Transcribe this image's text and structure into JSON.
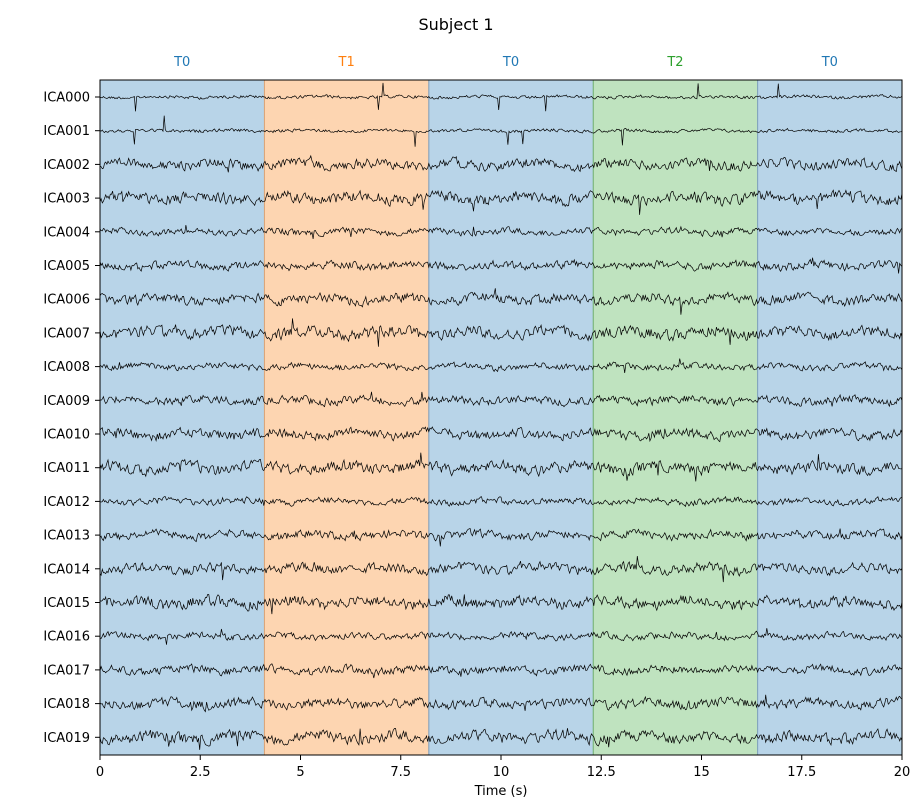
{
  "chart_data": {
    "type": "line",
    "title": "Subject 1",
    "xlabel": "Time (s)",
    "ylabel": "",
    "xlim": [
      0,
      20
    ],
    "xticks": [
      0,
      2.5,
      5,
      7.5,
      10,
      12.5,
      15,
      17.5,
      20
    ],
    "xtick_labels": [
      "0",
      "2.5",
      "5",
      "7.5",
      "10",
      "12.5",
      "15",
      "17.5",
      "20"
    ],
    "channels": [
      "ICA000",
      "ICA001",
      "ICA002",
      "ICA003",
      "ICA004",
      "ICA005",
      "ICA006",
      "ICA007",
      "ICA008",
      "ICA009",
      "ICA010",
      "ICA011",
      "ICA012",
      "ICA013",
      "ICA014",
      "ICA015",
      "ICA016",
      "ICA017",
      "ICA018",
      "ICA019"
    ],
    "segments": [
      {
        "label": "T0",
        "start": 0,
        "end": 4.1,
        "fill": "#b8d4e8",
        "label_color": "#1f77b4",
        "edge": "#7a9cbc"
      },
      {
        "label": "T1",
        "start": 4.1,
        "end": 8.2,
        "fill": "#fdd5b1",
        "label_color": "#ff7f0e",
        "edge": "#d9a274"
      },
      {
        "label": "T0",
        "start": 8.2,
        "end": 12.3,
        "fill": "#b8d4e8",
        "label_color": "#1f77b4",
        "edge": "#7a9cbc"
      },
      {
        "label": "T2",
        "start": 12.3,
        "end": 16.4,
        "fill": "#bfe3bf",
        "label_color": "#2ca02c",
        "edge": "#6fae6f"
      },
      {
        "label": "T0",
        "start": 16.4,
        "end": 20,
        "fill": "#b8d4e8",
        "label_color": "#1f77b4",
        "edge": "#7a9cbc"
      }
    ],
    "trace_color": "#000000",
    "grid": false
  }
}
